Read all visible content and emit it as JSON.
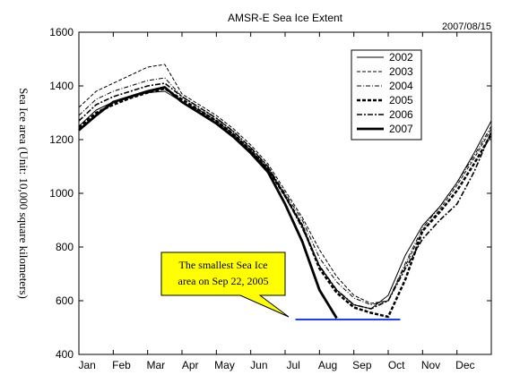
{
  "chart_data": {
    "type": "line",
    "title": "AMSR-E Sea Ice Extent",
    "date_stamp": "2007/08/15",
    "ylabel": "Sea Ice area (Unit: 10,000 square kilometers)",
    "xlabel": "",
    "ylim": [
      400,
      1600
    ],
    "yticks": [
      400,
      600,
      800,
      1000,
      1200,
      1400,
      1600
    ],
    "xlim": [
      0,
      12
    ],
    "month_labels": [
      "Jan",
      "Feb",
      "Mar",
      "Apr",
      "May",
      "Jun",
      "Jul",
      "Aug",
      "Sep",
      "Oct",
      "Nov",
      "Dec"
    ],
    "grid": false,
    "legend_position": "top-right",
    "series": [
      {
        "name": "2002",
        "style": "thin-solid",
        "x": [
          0,
          0.5,
          1,
          1.5,
          2,
          2.5,
          3,
          3.5,
          4,
          4.5,
          5,
          5.5,
          6,
          6.5,
          7,
          7.5,
          8,
          8.5,
          9,
          9.5,
          10,
          10.5,
          11,
          11.5,
          12
        ],
        "y": [
          1250,
          1310,
          1340,
          1360,
          1375,
          1380,
          1340,
          1310,
          1270,
          1220,
          1160,
          1090,
          990,
          880,
          730,
          640,
          585,
          570,
          620,
          770,
          880,
          950,
          1040,
          1150,
          1270
        ]
      },
      {
        "name": "2003",
        "style": "thin-dashed",
        "x": [
          0,
          0.5,
          1,
          1.5,
          2,
          2.5,
          3,
          3.5,
          4,
          4.5,
          5,
          5.5,
          6,
          6.5,
          7,
          7.5,
          8,
          8.5,
          9,
          9.5,
          10,
          10.5,
          11,
          11.5,
          12
        ],
        "y": [
          1320,
          1380,
          1410,
          1440,
          1470,
          1480,
          1370,
          1330,
          1290,
          1240,
          1180,
          1110,
          1010,
          910,
          790,
          690,
          620,
          590,
          600,
          730,
          860,
          940,
          1030,
          1130,
          1240
        ]
      },
      {
        "name": "2004",
        "style": "thin-dashdot",
        "x": [
          0,
          0.5,
          1,
          1.5,
          2,
          2.5,
          3,
          3.5,
          4,
          4.5,
          5,
          5.5,
          6,
          6.5,
          7,
          7.5,
          8,
          8.5,
          9,
          9.5,
          10,
          10.5,
          11,
          11.5,
          12
        ],
        "y": [
          1290,
          1350,
          1380,
          1400,
          1420,
          1430,
          1360,
          1320,
          1280,
          1230,
          1170,
          1100,
          1000,
          900,
          760,
          670,
          610,
          585,
          600,
          740,
          870,
          950,
          1040,
          1140,
          1250
        ]
      },
      {
        "name": "2005",
        "style": "thick-dashed",
        "x": [
          0,
          0.5,
          1,
          1.5,
          2,
          2.5,
          3,
          3.5,
          4,
          4.5,
          5,
          5.5,
          6,
          6.5,
          7,
          7.5,
          8,
          8.5,
          9,
          9.5,
          10,
          10.5,
          11,
          11.5,
          12
        ],
        "y": [
          1245,
          1300,
          1330,
          1355,
          1375,
          1390,
          1350,
          1310,
          1270,
          1220,
          1160,
          1090,
          990,
          880,
          720,
          630,
          575,
          555,
          540,
          680,
          860,
          930,
          1010,
          1110,
          1220
        ]
      },
      {
        "name": "2006",
        "style": "dashdot",
        "x": [
          0,
          0.5,
          1,
          1.5,
          2,
          2.5,
          3,
          3.5,
          4,
          4.5,
          5,
          5.5,
          6,
          6.5,
          7,
          7.5,
          8,
          8.5,
          9,
          9.5,
          10,
          10.5,
          11,
          11.5,
          12
        ],
        "y": [
          1270,
          1330,
          1360,
          1380,
          1400,
          1410,
          1360,
          1320,
          1280,
          1230,
          1170,
          1100,
          990,
          870,
          730,
          640,
          585,
          570,
          600,
          720,
          830,
          900,
          960,
          1080,
          1230
        ]
      },
      {
        "name": "2007",
        "style": "thick-solid",
        "x": [
          0,
          0.5,
          1,
          1.5,
          2,
          2.5,
          3,
          3.5,
          4,
          4.5,
          5,
          5.5,
          6,
          6.5,
          7,
          7.5
        ],
        "y": [
          1235,
          1290,
          1340,
          1360,
          1380,
          1395,
          1340,
          1300,
          1260,
          1210,
          1150,
          1080,
          960,
          820,
          640,
          535
        ]
      }
    ],
    "reference_line": {
      "y": 530,
      "x_start": 6.3,
      "x_end": 9.35,
      "color": "#1f3cff"
    }
  },
  "callout": {
    "line1": "The smallest Sea Ice",
    "line2": "area on Sep 22, 2005",
    "fill": "#ffff00"
  }
}
